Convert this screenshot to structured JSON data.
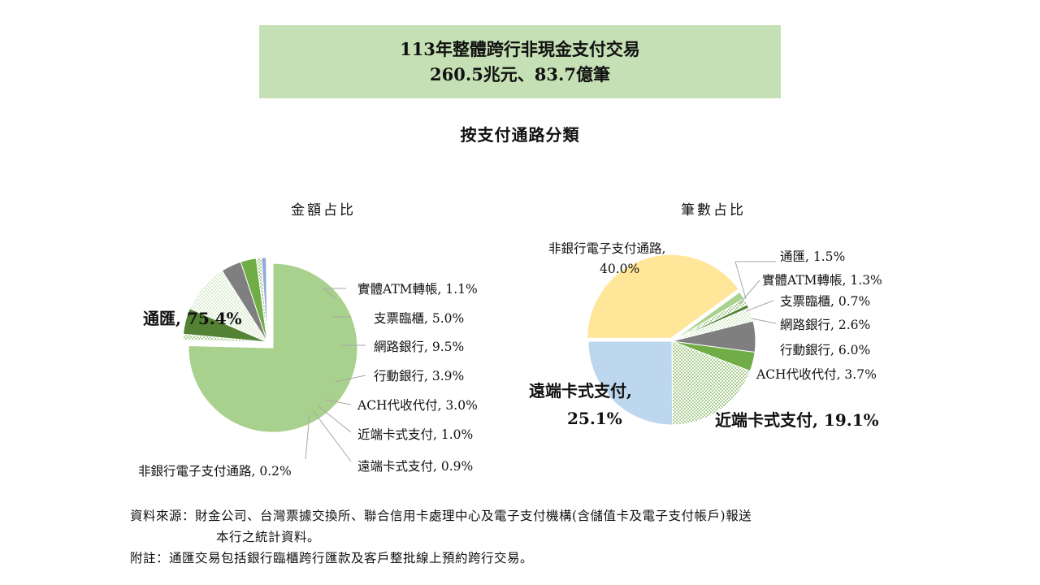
{
  "header": {
    "title_line1": "113年整體跨行非現金支付交易",
    "title_line2": "260.5兆元、83.7億筆",
    "subtitle": "按支付通路分類"
  },
  "chart_data": [
    {
      "type": "pie",
      "title": "金額占比",
      "slices": [
        {
          "label": "通匯",
          "value": 75.4,
          "color": "#a9d18e",
          "pattern": "solid"
        },
        {
          "label": "實體ATM轉帳",
          "value": 1.1,
          "color": "#a9d18e",
          "pattern": "dots"
        },
        {
          "label": "支票臨櫃",
          "value": 5.0,
          "color": "#548235",
          "pattern": "solid"
        },
        {
          "label": "網路銀行",
          "value": 9.5,
          "color": "#a9d18e",
          "pattern": "dots-light"
        },
        {
          "label": "行動銀行",
          "value": 3.9,
          "color": "#7f7f7f",
          "pattern": "solid"
        },
        {
          "label": "ACH代收代付",
          "value": 3.0,
          "color": "#70ad47",
          "pattern": "solid"
        },
        {
          "label": "近端卡式支付",
          "value": 1.0,
          "color": "#a9d18e",
          "pattern": "dots"
        },
        {
          "label": "遠端卡式支付",
          "value": 0.9,
          "color": "#8faadc",
          "pattern": "solid"
        },
        {
          "label": "非銀行電子支付通路",
          "value": 0.2,
          "color": "#ffd966",
          "pattern": "solid"
        }
      ],
      "labels": [
        "通匯, 75.4%",
        "實體ATM轉帳, 1.1%",
        "支票臨櫃, 5.0%",
        "網路銀行, 9.5%",
        "行動銀行, 3.9%",
        "ACH代收代付, 3.0%",
        "近端卡式支付, 1.0%",
        "遠端卡式支付, 0.9%",
        "非銀行電子支付通路, 0.2%"
      ]
    },
    {
      "type": "pie",
      "title": "筆數占比",
      "slices": [
        {
          "label": "非銀行電子支付通路",
          "value": 40.0,
          "color": "#ffe699",
          "pattern": "solid"
        },
        {
          "label": "通匯",
          "value": 1.5,
          "color": "#a9d18e",
          "pattern": "solid"
        },
        {
          "label": "實體ATM轉帳",
          "value": 1.3,
          "color": "#a9d18e",
          "pattern": "dots"
        },
        {
          "label": "支票臨櫃",
          "value": 0.7,
          "color": "#548235",
          "pattern": "solid"
        },
        {
          "label": "網路銀行",
          "value": 2.6,
          "color": "#a9d18e",
          "pattern": "dots-light"
        },
        {
          "label": "行動銀行",
          "value": 6.0,
          "color": "#7f7f7f",
          "pattern": "solid"
        },
        {
          "label": "ACH代收代付",
          "value": 3.7,
          "color": "#70ad47",
          "pattern": "solid"
        },
        {
          "label": "近端卡式支付",
          "value": 19.1,
          "color": "#a9d18e",
          "pattern": "dots"
        },
        {
          "label": "遠端卡式支付",
          "value": 25.1,
          "color": "#bdd7ee",
          "pattern": "solid"
        }
      ],
      "labels": [
        "非銀行電子支付通路,",
        "40.0%",
        "通匯, 1.5%",
        "實體ATM轉帳, 1.3%",
        "支票臨櫃, 0.7%",
        "網路銀行, 2.6%",
        "行動銀行, 6.0%",
        "ACH代收代付, 3.7%",
        "近端卡式支付, 19.1%",
        "遠端卡式支付,",
        "25.1%"
      ]
    }
  ],
  "notes": {
    "source_line1": "資料來源：財金公司、台灣票據交換所、聯合信用卡處理中心及電子支付機構(含儲值卡及電子支付帳戶)報送",
    "source_line2": "本行之統計資料。",
    "footnote": "附註：通匯交易包括銀行臨櫃跨行匯款及客戶整批線上預約跨行交易。"
  }
}
